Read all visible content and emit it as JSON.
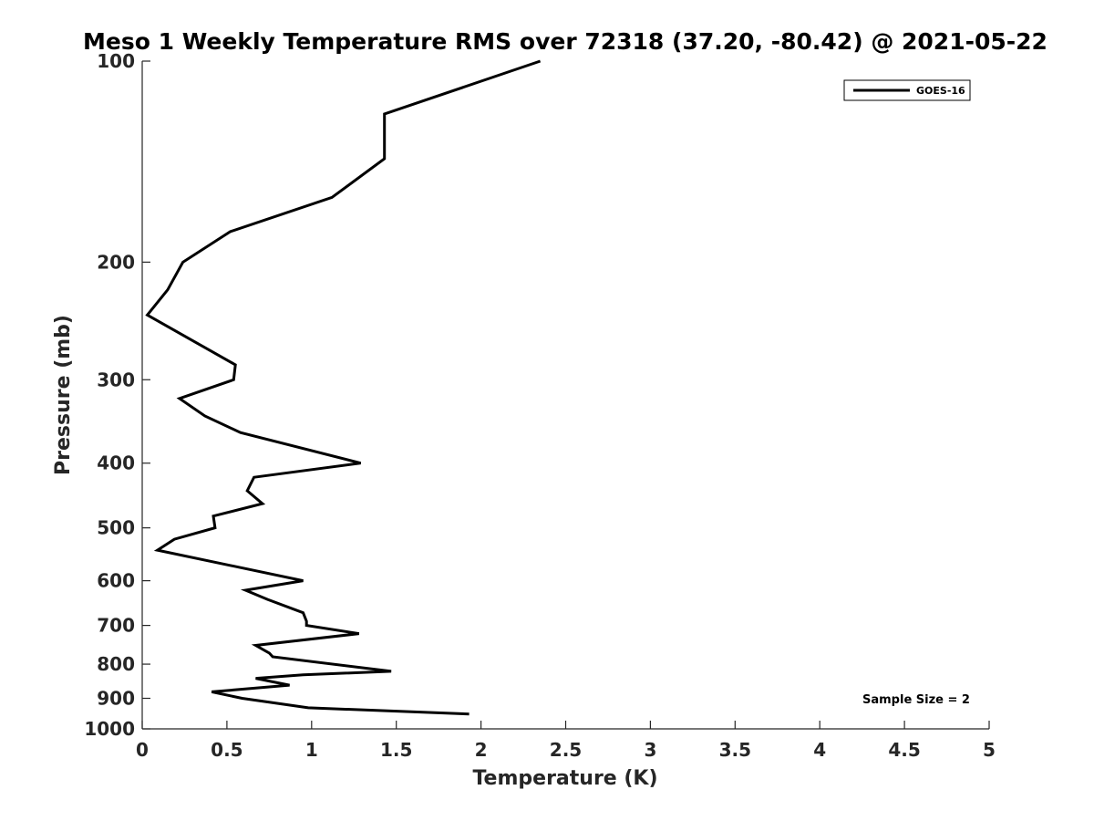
{
  "chart_data": {
    "type": "line",
    "title": "Meso 1 Weekly Temperature RMS over 72318 (37.20, -80.42) @ 2021-05-22",
    "xlabel": "Temperature (K)",
    "ylabel": "Pressure (mb)",
    "xlim": [
      0,
      5
    ],
    "ylim": [
      100,
      1000
    ],
    "y_scale": "log",
    "y_reversed": true,
    "x_ticks": [
      "0",
      "0.5",
      "1",
      "1.5",
      "2",
      "2.5",
      "3",
      "3.5",
      "4",
      "4.5",
      "5"
    ],
    "y_ticks": [
      "100",
      "200",
      "300",
      "400",
      "500",
      "600",
      "700",
      "800",
      "900",
      "1000"
    ],
    "legend": "top-right",
    "grid": false,
    "annotation": "Sample Size = 2",
    "series": [
      {
        "name": "GOES-16",
        "color": "#000000",
        "points": [
          [
            2.35,
            100
          ],
          [
            1.43,
            120
          ],
          [
            1.43,
            140
          ],
          [
            1.12,
            160
          ],
          [
            0.52,
            180
          ],
          [
            0.24,
            200
          ],
          [
            0.15,
            220
          ],
          [
            0.03,
            240
          ],
          [
            0.33,
            265
          ],
          [
            0.55,
            285
          ],
          [
            0.54,
            300
          ],
          [
            0.22,
            320
          ],
          [
            0.37,
            340
          ],
          [
            0.58,
            360
          ],
          [
            1.29,
            400
          ],
          [
            0.66,
            420
          ],
          [
            0.62,
            440
          ],
          [
            0.71,
            460
          ],
          [
            0.42,
            480
          ],
          [
            0.43,
            500
          ],
          [
            0.19,
            520
          ],
          [
            0.09,
            540
          ],
          [
            0.95,
            600
          ],
          [
            0.61,
            620
          ],
          [
            0.74,
            640
          ],
          [
            0.95,
            670
          ],
          [
            0.97,
            690
          ],
          [
            0.97,
            700
          ],
          [
            1.28,
            720
          ],
          [
            0.67,
            750
          ],
          [
            0.75,
            770
          ],
          [
            0.77,
            780
          ],
          [
            1.47,
            820
          ],
          [
            0.95,
            830
          ],
          [
            0.67,
            840
          ],
          [
            0.87,
            860
          ],
          [
            0.41,
            880
          ],
          [
            0.59,
            900
          ],
          [
            0.98,
            930
          ],
          [
            1.93,
            950
          ]
        ]
      }
    ]
  }
}
